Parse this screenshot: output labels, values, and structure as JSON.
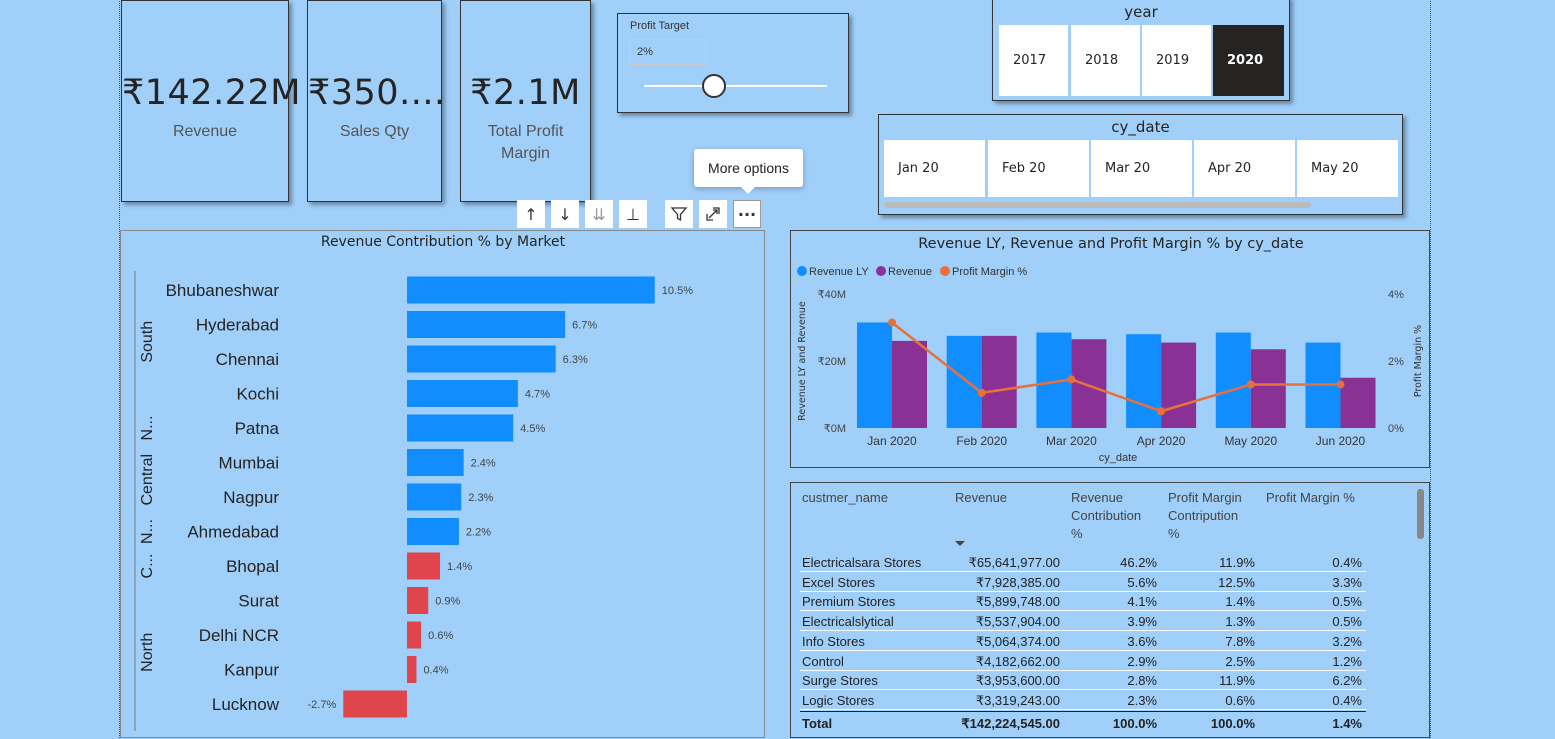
{
  "cards": [
    {
      "value": "₹142.22M",
      "label": "Revenue"
    },
    {
      "value": "₹350....",
      "label": "Sales Qty"
    },
    {
      "value": "₹2.1M",
      "label": "Total Profit\nMargin"
    }
  ],
  "profit_target": {
    "title": "Profit Target",
    "value": "2%",
    "slider_fraction": 0.38
  },
  "year_slicer": {
    "title": "year",
    "options": [
      "2017",
      "2018",
      "2019",
      "2020"
    ],
    "selected": "2020"
  },
  "date_slicer": {
    "title": "cy_date",
    "options": [
      "Jan 20",
      "Feb 20",
      "Mar 20",
      "Apr 20",
      "May 20"
    ]
  },
  "tooltip": {
    "text": "More options"
  },
  "visual_toolbar": {
    "icons": [
      "arrow-up-icon",
      "arrow-down-icon",
      "double-arrow-down-icon",
      "expand-hierarchy-icon",
      "filter-icon",
      "focus-mode-icon",
      "more-options-icon"
    ]
  },
  "colors": {
    "positive_bar": "#118dff",
    "negative_bar": "#e0454e",
    "revenue_ly": "#118dff",
    "revenue": "#8a3196",
    "profit_margin": "#e8703a"
  },
  "chart_data": [
    {
      "type": "bar",
      "title": "Revenue Contribution % by Market",
      "groups": [
        {
          "label": "South",
          "categories": [
            "Bhubaneshwar",
            "Hyderabad",
            "Chennai",
            "Kochi"
          ]
        },
        {
          "label": "N...",
          "categories": [
            "Patna"
          ]
        },
        {
          "label": "Central",
          "categories": [
            "Mumbai",
            "Nagpur"
          ]
        },
        {
          "label": "N...",
          "categories": [
            "Ahmedabad"
          ]
        },
        {
          "label": "C...",
          "categories": [
            "Bhopal"
          ]
        },
        {
          "label": "North",
          "categories": [
            "Surat",
            "Delhi NCR",
            "Kanpur",
            "Lucknow"
          ]
        }
      ],
      "categories": [
        "Bhubaneshwar",
        "Hyderabad",
        "Chennai",
        "Kochi",
        "Patna",
        "Mumbai",
        "Nagpur",
        "Ahmedabad",
        "Bhopal",
        "Surat",
        "Delhi NCR",
        "Kanpur",
        "Lucknow"
      ],
      "values": [
        10.5,
        6.7,
        6.3,
        4.7,
        4.5,
        2.4,
        2.3,
        2.2,
        1.4,
        0.9,
        0.6,
        0.4,
        -2.7
      ],
      "data_labels": [
        "10.5%",
        "6.7%",
        "6.3%",
        "4.7%",
        "4.5%",
        "2.4%",
        "2.3%",
        "2.2%",
        "1.4%",
        "0.9%",
        "0.6%",
        "0.4%",
        "-2.7%"
      ],
      "highlight_below": 2
    },
    {
      "type": "bar",
      "title": "Revenue LY, Revenue and Profit Margin % by cy_date",
      "categories": [
        "Jan 2020",
        "Feb 2020",
        "Mar 2020",
        "Apr 2020",
        "May 2020",
        "Jun 2020"
      ],
      "series": [
        {
          "name": "Revenue LY",
          "kind": "bar",
          "values": [
            31.5,
            27.5,
            28.5,
            28.0,
            28.5,
            25.5
          ]
        },
        {
          "name": "Revenue",
          "kind": "bar",
          "values": [
            26.0,
            27.5,
            26.5,
            25.5,
            23.5,
            15.0
          ]
        },
        {
          "name": "Profit Margin %",
          "kind": "line",
          "axis": "right",
          "values": [
            3.15,
            1.05,
            1.45,
            0.5,
            1.3,
            1.3
          ]
        }
      ],
      "xlabel": "cy_date",
      "ylabel": "Revenue LY and Revenue",
      "y2label": "Profit Margin %",
      "ylim": [
        0,
        40
      ],
      "y2lim": [
        0,
        4
      ],
      "yticks": [
        "₹0M",
        "₹20M",
        "₹40M"
      ],
      "y2ticks": [
        "0%",
        "2%",
        "4%"
      ],
      "legend": "top-left"
    }
  ],
  "table": {
    "headers": [
      "custmer_name",
      "Revenue",
      "Revenue\nContribution\n%",
      "Profit Margin\nContripution\n%",
      "Profit Margin %"
    ],
    "rows": [
      [
        "Electricalsara Stores",
        "₹65,641,977.00",
        "46.2%",
        "11.9%",
        "0.4%"
      ],
      [
        "Excel Stores",
        "₹7,928,385.00",
        "5.6%",
        "12.5%",
        "3.3%"
      ],
      [
        "Premium Stores",
        "₹5,899,748.00",
        "4.1%",
        "1.4%",
        "0.5%"
      ],
      [
        "Electricalslytical",
        "₹5,537,904.00",
        "3.9%",
        "1.3%",
        "0.5%"
      ],
      [
        "Info Stores",
        "₹5,064,374.00",
        "3.6%",
        "7.8%",
        "3.2%"
      ],
      [
        "Control",
        "₹4,182,662.00",
        "2.9%",
        "2.5%",
        "1.2%"
      ],
      [
        "Surge Stores",
        "₹3,953,600.00",
        "2.8%",
        "11.9%",
        "6.2%"
      ],
      [
        "Logic Stores",
        "₹3,319,243.00",
        "2.3%",
        "0.6%",
        "0.4%"
      ]
    ],
    "total": [
      "Total",
      "₹142,224,545.00",
      "100.0%",
      "100.0%",
      "1.4%"
    ]
  }
}
